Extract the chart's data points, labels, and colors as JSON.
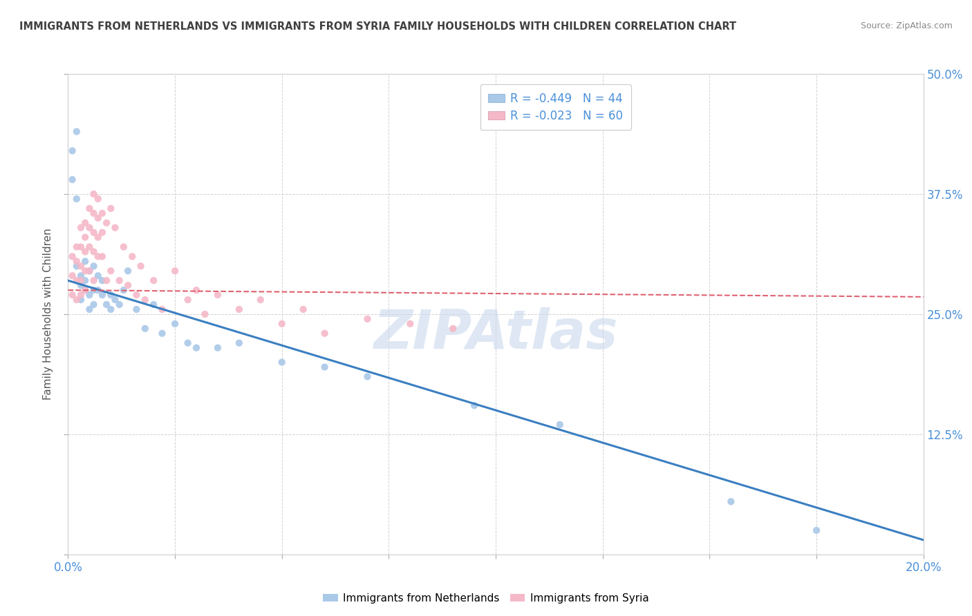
{
  "title": "IMMIGRANTS FROM NETHERLANDS VS IMMIGRANTS FROM SYRIA FAMILY HOUSEHOLDS WITH CHILDREN CORRELATION CHART",
  "source": "Source: ZipAtlas.com",
  "ylabel": "Family Households with Children",
  "xlim": [
    0.0,
    0.2
  ],
  "ylim": [
    0.0,
    0.5
  ],
  "xticks": [
    0.0,
    0.025,
    0.05,
    0.075,
    0.1,
    0.125,
    0.15,
    0.175,
    0.2
  ],
  "yticks": [
    0.0,
    0.125,
    0.25,
    0.375,
    0.5
  ],
  "legend1_label": "R = -0.449   N = 44",
  "legend2_label": "R = -0.023   N = 60",
  "netherlands_color": "#aac8e8",
  "syria_color": "#f5b8c8",
  "netherlands_line_color": "#3a7fc1",
  "syria_line_color": "#e06070",
  "grid_color": "#cccccc",
  "watermark": "ZIPAtlas",
  "watermark_color": "#c8d8ec",
  "title_color": "#404040",
  "axis_color": "#4a90d9",
  "netherlands_trend_x": [
    0.0,
    0.2
  ],
  "netherlands_trend_y": [
    0.285,
    0.015
  ],
  "syria_trend_x": [
    0.0,
    0.2
  ],
  "syria_trend_y": [
    0.275,
    0.268
  ],
  "netherlands_scatter_x": [
    0.001,
    0.001,
    0.002,
    0.002,
    0.002,
    0.003,
    0.003,
    0.003,
    0.004,
    0.004,
    0.004,
    0.005,
    0.005,
    0.005,
    0.006,
    0.006,
    0.006,
    0.007,
    0.007,
    0.008,
    0.008,
    0.009,
    0.01,
    0.01,
    0.011,
    0.012,
    0.013,
    0.014,
    0.016,
    0.018,
    0.02,
    0.022,
    0.025,
    0.028,
    0.03,
    0.035,
    0.04,
    0.05,
    0.06,
    0.07,
    0.095,
    0.115,
    0.155,
    0.175
  ],
  "netherlands_scatter_y": [
    0.42,
    0.39,
    0.37,
    0.44,
    0.3,
    0.28,
    0.29,
    0.265,
    0.275,
    0.285,
    0.305,
    0.27,
    0.295,
    0.255,
    0.275,
    0.26,
    0.3,
    0.275,
    0.29,
    0.27,
    0.285,
    0.26,
    0.27,
    0.255,
    0.265,
    0.26,
    0.275,
    0.295,
    0.255,
    0.235,
    0.26,
    0.23,
    0.24,
    0.22,
    0.215,
    0.215,
    0.22,
    0.2,
    0.195,
    0.185,
    0.155,
    0.135,
    0.055,
    0.025
  ],
  "syria_scatter_x": [
    0.001,
    0.001,
    0.001,
    0.002,
    0.002,
    0.002,
    0.002,
    0.003,
    0.003,
    0.003,
    0.003,
    0.003,
    0.004,
    0.004,
    0.004,
    0.004,
    0.004,
    0.005,
    0.005,
    0.005,
    0.005,
    0.006,
    0.006,
    0.006,
    0.006,
    0.006,
    0.007,
    0.007,
    0.007,
    0.007,
    0.008,
    0.008,
    0.008,
    0.009,
    0.009,
    0.01,
    0.01,
    0.011,
    0.012,
    0.013,
    0.014,
    0.015,
    0.016,
    0.017,
    0.018,
    0.02,
    0.022,
    0.025,
    0.028,
    0.03,
    0.032,
    0.035,
    0.04,
    0.045,
    0.05,
    0.055,
    0.06,
    0.07,
    0.08,
    0.09
  ],
  "syria_scatter_y": [
    0.31,
    0.29,
    0.27,
    0.32,
    0.305,
    0.285,
    0.265,
    0.34,
    0.32,
    0.3,
    0.285,
    0.27,
    0.345,
    0.33,
    0.315,
    0.295,
    0.275,
    0.36,
    0.34,
    0.32,
    0.295,
    0.375,
    0.355,
    0.335,
    0.315,
    0.285,
    0.37,
    0.35,
    0.33,
    0.31,
    0.355,
    0.335,
    0.31,
    0.345,
    0.285,
    0.36,
    0.295,
    0.34,
    0.285,
    0.32,
    0.28,
    0.31,
    0.27,
    0.3,
    0.265,
    0.285,
    0.255,
    0.295,
    0.265,
    0.275,
    0.25,
    0.27,
    0.255,
    0.265,
    0.24,
    0.255,
    0.23,
    0.245,
    0.24,
    0.235
  ]
}
